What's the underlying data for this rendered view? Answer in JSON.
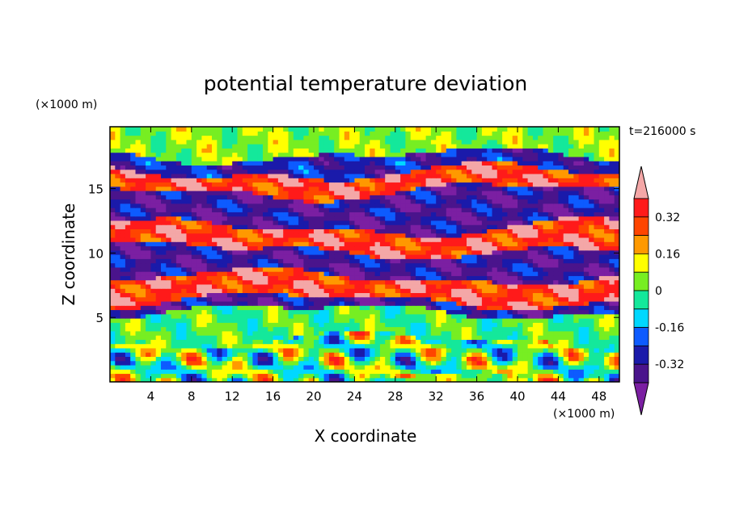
{
  "chart_data": {
    "type": "heatmap",
    "title": "potential temperature deviation",
    "xlabel": "X coordinate",
    "ylabel": "Z coordinate",
    "x_unit": "(×1000 m)",
    "y_unit": "(×1000 m)",
    "time_label": "t=216000 s",
    "xlim": [
      0,
      50
    ],
    "ylim": [
      0,
      19.8
    ],
    "x_ticks": [
      4,
      8,
      12,
      16,
      20,
      24,
      28,
      32,
      36,
      40,
      44,
      48
    ],
    "y_ticks": [
      5,
      10,
      15
    ],
    "colorbar": {
      "levels": [
        -0.4,
        -0.32,
        -0.24,
        -0.16,
        -0.08,
        0,
        0.08,
        0.16,
        0.24,
        0.32,
        0.4
      ],
      "colors": [
        "#7b1fa2",
        "#4a148c",
        "#1a1aaa",
        "#0d5bff",
        "#00d8ff",
        "#14e89b",
        "#77ee22",
        "#ffff00",
        "#ff9900",
        "#ff4500",
        "#ff1a1a",
        "#f4a7a7"
      ],
      "tick_labels": [
        "0.32",
        "0.16",
        "0",
        "-0.16",
        "-0.32"
      ],
      "tick_values": [
        0.32,
        0.16,
        0,
        -0.16,
        -0.32
      ]
    },
    "layers": [
      {
        "z_min": 0.0,
        "z_max": 3.2,
        "value": 0.02,
        "pattern": "convective"
      },
      {
        "z_min": 3.2,
        "z_max": 5.5,
        "value": 0.0,
        "pattern": "smooth"
      },
      {
        "z_min": 5.5,
        "z_max": 6.3,
        "value": -0.45,
        "pattern": "banded"
      },
      {
        "z_min": 6.3,
        "z_max": 8.2,
        "value": 0.45,
        "pattern": "banded"
      },
      {
        "z_min": 8.2,
        "z_max": 10.2,
        "value": -0.45,
        "pattern": "banded"
      },
      {
        "z_min": 10.2,
        "z_max": 12.0,
        "value": 0.45,
        "pattern": "banded"
      },
      {
        "z_min": 12.0,
        "z_max": 14.8,
        "value": -0.45,
        "pattern": "banded"
      },
      {
        "z_min": 14.8,
        "z_max": 16.3,
        "value": 0.45,
        "pattern": "banded"
      },
      {
        "z_min": 16.3,
        "z_max": 17.6,
        "value": -0.38,
        "pattern": "banded"
      },
      {
        "z_min": 17.6,
        "z_max": 19.8,
        "value": 0.05,
        "pattern": "smooth"
      }
    ]
  }
}
